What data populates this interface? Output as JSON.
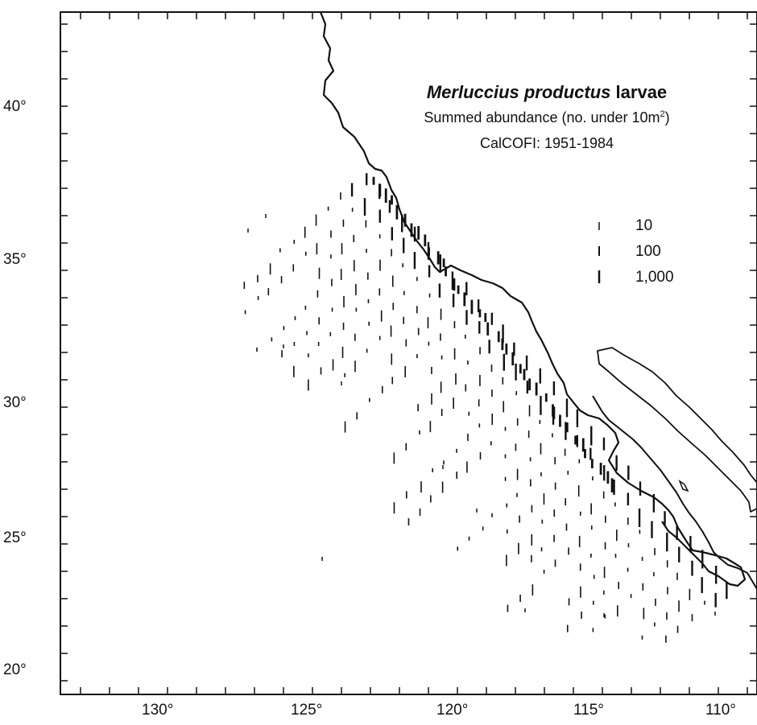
{
  "map": {
    "title_species": "Merluccius productus",
    "title_rest": "larvae",
    "subtitle_main": "Summed abundance (no. under 10m",
    "subtitle_sup": "2",
    "subtitle_end": ")",
    "survey": "CalCOFI: 1951-1984",
    "latitude_labels": [
      "40°",
      "35°",
      "30°",
      "25°",
      "20°"
    ],
    "longitude_labels": [
      "130°",
      "125°",
      "120°",
      "115°",
      "110°"
    ],
    "legend": [
      {
        "label": "10",
        "value": 10
      },
      {
        "label": "100",
        "value": 100
      },
      {
        "label": "1,000",
        "value": 1000
      }
    ],
    "extent": {
      "lon_west": 134.8,
      "lon_east": 109.2,
      "lat_south": 19.1,
      "lat_north": 43.5
    }
  }
}
